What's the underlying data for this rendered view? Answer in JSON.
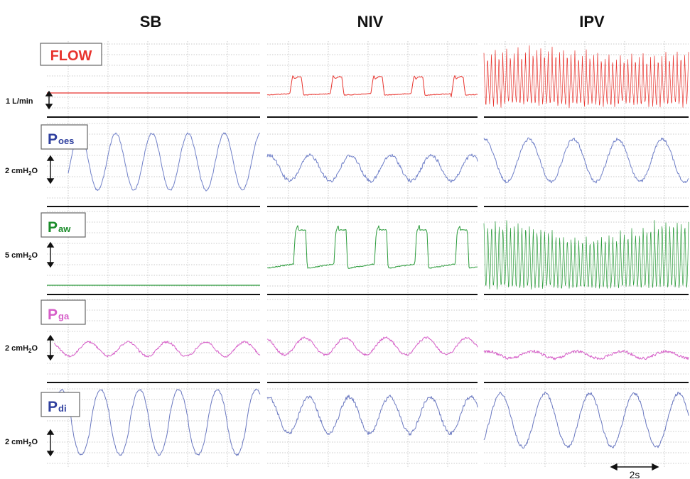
{
  "chart_data": {
    "type": "line",
    "columns": [
      {
        "key": "sb",
        "title": "SB"
      },
      {
        "key": "niv",
        "title": "NIV"
      },
      {
        "key": "ipv",
        "title": "IPV"
      }
    ],
    "rows": [
      {
        "key": "flow",
        "label_main": "FLOW",
        "label_sub": "",
        "color": "#e8332d",
        "scale": {
          "text": "1 L/min",
          "unit_main": "",
          "unit_sub": "",
          "unit_tail": ""
        }
      },
      {
        "key": "poes",
        "label_main": "P",
        "label_sub": "oes",
        "color": "#2e3f9e",
        "scale": {
          "text": "",
          "unit_main": "2 cmH",
          "unit_sub": "2",
          "unit_tail": "O"
        }
      },
      {
        "key": "paw",
        "label_main": "P",
        "label_sub": "aw",
        "color": "#1a8c2a",
        "scale": {
          "text": "",
          "unit_main": "5 cmH",
          "unit_sub": "2",
          "unit_tail": "O"
        }
      },
      {
        "key": "pga",
        "label_main": "P",
        "label_sub": "ga",
        "color": "#d65ec8",
        "scale": {
          "text": "",
          "unit_main": "2 cmH",
          "unit_sub": "2",
          "unit_tail": "O"
        }
      },
      {
        "key": "pdi",
        "label_main": "P",
        "label_sub": "di",
        "color": "#2e3f9e",
        "scale": {
          "text": "",
          "unit_main": "2 cmH",
          "unit_sub": "2",
          "unit_tail": "O"
        }
      }
    ],
    "time_scale_label": "2s",
    "series_colors": {
      "flow": "#e8332d",
      "poes": "#7080c8",
      "paw": "#2a9b3a",
      "pga": "#d65ec8",
      "pdi": "#6a78c0"
    },
    "breathing_cycles": {
      "sb": 5.3,
      "niv": 5.2,
      "ipv": 4.6
    },
    "percussive_oscillations_ipv": 54
  }
}
